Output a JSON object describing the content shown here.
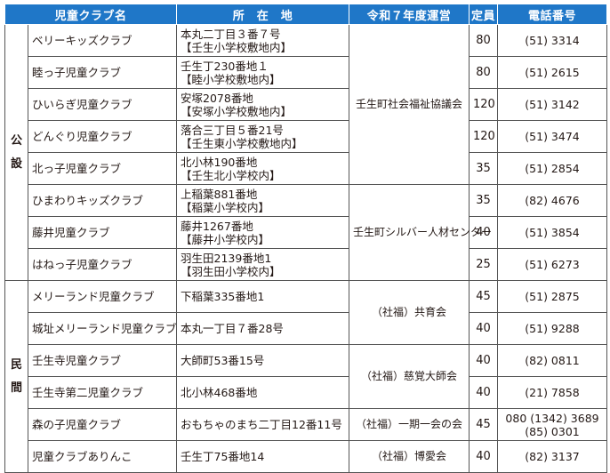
{
  "headers": {
    "name": "児童クラブ名",
    "address": "所　在　地",
    "operator": "令和７年度運営",
    "capacity": "定員",
    "phone": "電話番号"
  },
  "categories": {
    "public": [
      "公",
      "設"
    ],
    "private": [
      "民",
      "間"
    ]
  },
  "public_rows": [
    {
      "name": "ベリーキッズクラブ",
      "address": [
        "本丸二丁目３番７号",
        "【壬生小学校敷地内】"
      ],
      "capacity": "80",
      "phone": [
        "(51) 3314"
      ]
    },
    {
      "name": "睦っ子児童クラブ",
      "address": [
        "壬生丁230番地１",
        "【睦小学校敷地内】"
      ],
      "capacity": "80",
      "phone": [
        "(51) 2615"
      ]
    },
    {
      "name": "ひいらぎ児童クラブ",
      "address": [
        "安塚2078番地",
        "【安塚小学校敷地内】"
      ],
      "capacity": "120",
      "phone": [
        "(51) 3142"
      ]
    },
    {
      "name": "どんぐり児童クラブ",
      "address": [
        "落合三丁目５番21号",
        "【壬生東小学校敷地内】"
      ],
      "capacity": "120",
      "phone": [
        "(51) 3474"
      ]
    },
    {
      "name": "北っ子児童クラブ",
      "address": [
        "北小林190番地",
        "【壬生北小学校内】"
      ],
      "capacity": "35",
      "phone": [
        "(51) 2854"
      ]
    },
    {
      "name": "ひまわりキッズクラブ",
      "address": [
        "上稲葉881番地",
        "【稲葉小学校内】"
      ],
      "capacity": "35",
      "phone": [
        "(82) 4676"
      ]
    },
    {
      "name": "藤井児童クラブ",
      "address": [
        "藤井1267番地",
        "【藤井小学校内】"
      ],
      "capacity": "40",
      "phone": [
        "(51) 3854"
      ]
    },
    {
      "name": "はねっ子児童クラブ",
      "address": [
        "羽生田2139番地1",
        "【羽生田小学校内】"
      ],
      "capacity": "25",
      "phone": [
        "(51) 6273"
      ]
    }
  ],
  "public_operators": [
    "壬生町社会福祉協議会",
    "壬生町シルバー人材センター"
  ],
  "private_rows": [
    {
      "name": "メリーランド児童クラブ",
      "address": [
        "下稲葉335番地1"
      ],
      "capacity": "45",
      "phone": [
        "(51) 2875"
      ]
    },
    {
      "name": "城址メリーランド児童クラブ",
      "address": [
        "本丸一丁目７番28号"
      ],
      "capacity": "40",
      "phone": [
        "(51) 9288"
      ]
    },
    {
      "name": "壬生寺児童クラブ",
      "address": [
        "大師町53番15号"
      ],
      "capacity": "40",
      "phone": [
        "(82) 0811"
      ]
    },
    {
      "name": "壬生寺第二児童クラブ",
      "address": [
        "北小林468番地"
      ],
      "capacity": "40",
      "phone": [
        "(21) 7858"
      ]
    },
    {
      "name": "森の子児童クラブ",
      "address": [
        "おもちゃのまち二丁目12番11号"
      ],
      "capacity": "45",
      "phone": [
        "080 (1342) 3689",
        "(85) 0301"
      ]
    },
    {
      "name": "児童クラブありんこ",
      "address": [
        "壬生丁75番地14"
      ],
      "capacity": "40",
      "phone": [
        "(82) 3137"
      ]
    }
  ],
  "private_operators": [
    "（社福）共育会",
    "（社福）慈覚大師会",
    "（社福）一期一会の会",
    "（社福）博愛会"
  ]
}
